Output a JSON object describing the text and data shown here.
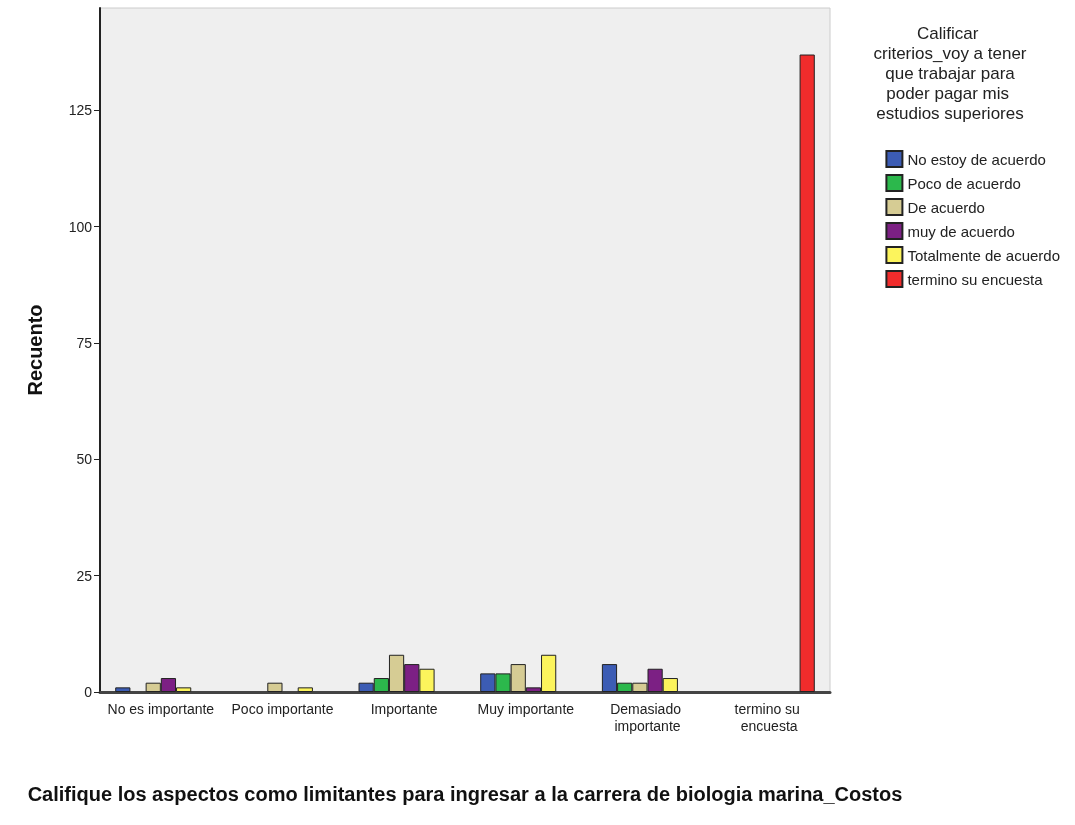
{
  "chart_data": {
    "type": "bar",
    "xlabel": "Califique los aspectos como limitantes para ingresar a la carrera de biologia marina_Costos",
    "ylabel": "Recuento",
    "legend_title": "Calificar criterios_voy a tener que trabajar para poder pagar mis estudios superiores",
    "categories": [
      "No es importante",
      "Poco importante",
      "Importante",
      "Muy importante",
      "Demasiado importante",
      "termino su encuesta"
    ],
    "series": [
      {
        "name": "No estoy de acuerdo",
        "color": "#3c5cb4",
        "values": [
          1,
          null,
          2,
          4,
          6,
          null
        ]
      },
      {
        "name": "Poco de acuerdo",
        "color": "#2cb84c",
        "values": [
          null,
          null,
          3,
          4,
          2,
          null
        ]
      },
      {
        "name": "De acuerdo",
        "color": "#d6cc94",
        "values": [
          2,
          2,
          8,
          6,
          2,
          null
        ]
      },
      {
        "name": "muy de acuerdo",
        "color": "#7c2084",
        "values": [
          3,
          null,
          6,
          1,
          5,
          null
        ]
      },
      {
        "name": "Totalmente de acuerdo",
        "color": "#fcf45c",
        "values": [
          1,
          1,
          5,
          8,
          3,
          null
        ]
      },
      {
        "name": "termino su encuesta",
        "color": "#f02c2c",
        "values": [
          null,
          null,
          null,
          null,
          null,
          137
        ]
      }
    ],
    "ylim": [
      0,
      147
    ],
    "yticks": [
      0,
      25,
      50,
      75,
      100,
      125
    ],
    "grid": false,
    "legend": "right"
  }
}
